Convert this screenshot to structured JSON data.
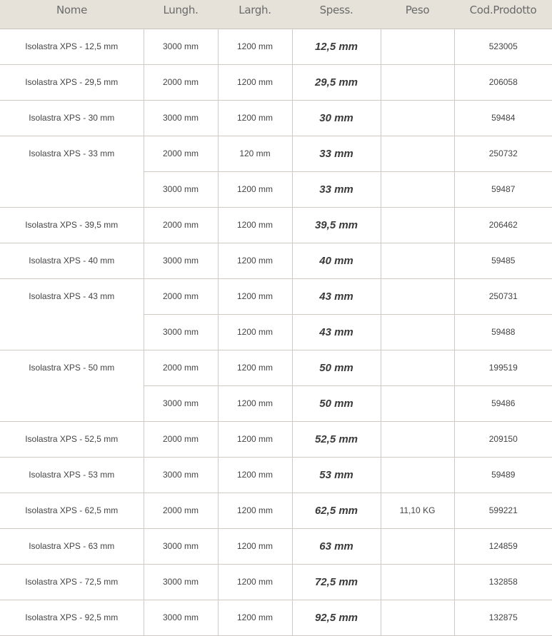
{
  "headers": [
    "Nome",
    "Lungh.",
    "Largh.",
    "Spess.",
    "Peso",
    "Cod.Prodotto"
  ],
  "products": [
    {
      "nome": "Isolastra XPS - 12,5 mm",
      "variants": [
        {
          "lungh": "3000 mm",
          "largh": "1200 mm",
          "spess": "12,5 mm",
          "peso": "",
          "cod": "523005"
        }
      ]
    },
    {
      "nome": "Isolastra XPS - 29,5 mm",
      "variants": [
        {
          "lungh": "2000 mm",
          "largh": "1200 mm",
          "spess": "29,5 mm",
          "peso": "",
          "cod": "206058"
        }
      ]
    },
    {
      "nome": "Isolastra XPS - 30 mm",
      "variants": [
        {
          "lungh": "3000 mm",
          "largh": "1200 mm",
          "spess": "30 mm",
          "peso": "",
          "cod": "59484"
        }
      ]
    },
    {
      "nome": "Isolastra XPS - 33 mm",
      "variants": [
        {
          "lungh": "2000 mm",
          "largh": "120 mm",
          "spess": "33 mm",
          "peso": "",
          "cod": "250732"
        },
        {
          "lungh": "3000 mm",
          "largh": "1200 mm",
          "spess": "33 mm",
          "peso": "",
          "cod": "59487"
        }
      ]
    },
    {
      "nome": "Isolastra XPS - 39,5 mm",
      "variants": [
        {
          "lungh": "2000 mm",
          "largh": "1200 mm",
          "spess": "39,5 mm",
          "peso": "",
          "cod": "206462"
        }
      ]
    },
    {
      "nome": "Isolastra XPS - 40 mm",
      "variants": [
        {
          "lungh": "3000 mm",
          "largh": "1200 mm",
          "spess": "40 mm",
          "peso": "",
          "cod": "59485"
        }
      ]
    },
    {
      "nome": "Isolastra XPS - 43 mm",
      "variants": [
        {
          "lungh": "2000 mm",
          "largh": "1200 mm",
          "spess": "43 mm",
          "peso": "",
          "cod": "250731"
        },
        {
          "lungh": "3000 mm",
          "largh": "1200 mm",
          "spess": "43 mm",
          "peso": "",
          "cod": "59488"
        }
      ]
    },
    {
      "nome": "Isolastra XPS - 50 mm",
      "variants": [
        {
          "lungh": "2000 mm",
          "largh": "1200 mm",
          "spess": "50 mm",
          "peso": "",
          "cod": "199519"
        },
        {
          "lungh": "3000 mm",
          "largh": "1200 mm",
          "spess": "50 mm",
          "peso": "",
          "cod": "59486"
        }
      ]
    },
    {
      "nome": "Isolastra XPS - 52,5 mm",
      "variants": [
        {
          "lungh": "2000 mm",
          "largh": "1200 mm",
          "spess": "52,5 mm",
          "peso": "",
          "cod": "209150"
        }
      ]
    },
    {
      "nome": "Isolastra XPS - 53 mm",
      "variants": [
        {
          "lungh": "3000 mm",
          "largh": "1200 mm",
          "spess": "53 mm",
          "peso": "",
          "cod": "59489"
        }
      ]
    },
    {
      "nome": "Isolastra XPS - 62,5 mm",
      "variants": [
        {
          "lungh": "2000 mm",
          "largh": "1200 mm",
          "spess": "62,5 mm",
          "peso": "11,10 KG",
          "cod": "599221"
        }
      ]
    },
    {
      "nome": "Isolastra XPS - 63 mm",
      "variants": [
        {
          "lungh": "3000 mm",
          "largh": "1200 mm",
          "spess": "63 mm",
          "peso": "",
          "cod": "124859"
        }
      ]
    },
    {
      "nome": "Isolastra XPS - 72,5 mm",
      "variants": [
        {
          "lungh": "3000 mm",
          "largh": "1200 mm",
          "spess": "72,5 mm",
          "peso": "",
          "cod": "132858"
        }
      ]
    },
    {
      "nome": "Isolastra XPS - 92,5 mm",
      "variants": [
        {
          "lungh": "3000 mm",
          "largh": "1200 mm",
          "spess": "92,5 mm",
          "peso": "",
          "cod": "132875"
        }
      ]
    }
  ]
}
